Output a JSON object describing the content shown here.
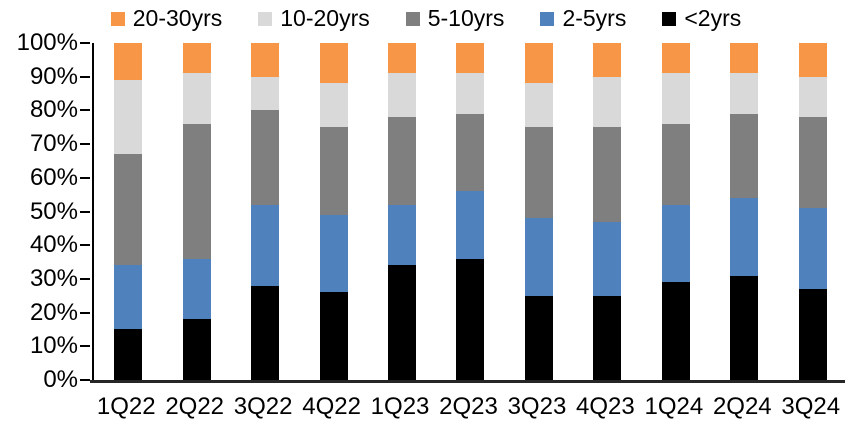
{
  "chart_data": {
    "type": "bar",
    "stacked": true,
    "normalized": "percent",
    "title": "",
    "xlabel": "",
    "ylabel": "",
    "grid": false,
    "categories": [
      "1Q22",
      "2Q22",
      "3Q22",
      "4Q22",
      "1Q23",
      "2Q23",
      "3Q23",
      "4Q23",
      "1Q24",
      "2Q24",
      "3Q24"
    ],
    "series": [
      {
        "name": "<2yrs",
        "color": "#000000",
        "values": [
          15,
          18,
          28,
          26,
          34,
          36,
          25,
          25,
          29,
          31,
          27
        ]
      },
      {
        "name": "2-5yrs",
        "color": "#4F81BD",
        "values": [
          19,
          18,
          24,
          23,
          18,
          20,
          23,
          22,
          23,
          23,
          24
        ]
      },
      {
        "name": "5-10yrs",
        "color": "#7F7F7F",
        "values": [
          33,
          40,
          28,
          26,
          26,
          23,
          27,
          28,
          24,
          25,
          27
        ]
      },
      {
        "name": "10-20yrs",
        "color": "#D9D9D9",
        "values": [
          22,
          15,
          10,
          13,
          13,
          12,
          13,
          15,
          15,
          12,
          12
        ]
      },
      {
        "name": "20-30yrs",
        "color": "#F79646",
        "values": [
          11,
          9,
          10,
          12,
          9,
          9,
          12,
          10,
          9,
          9,
          10
        ]
      }
    ],
    "legend": {
      "position": "top",
      "items": [
        {
          "label": "20-30yrs",
          "color": "#F79646"
        },
        {
          "label": "10-20yrs",
          "color": "#D9D9D9"
        },
        {
          "label": "5-10yrs",
          "color": "#7F7F7F"
        },
        {
          "label": "2-5yrs",
          "color": "#4F81BD"
        },
        {
          "label": "<2yrs",
          "color": "#000000"
        }
      ]
    },
    "y_axis": {
      "min": 0,
      "max": 100,
      "step": 10,
      "tick_labels": [
        "0%",
        "10%",
        "20%",
        "30%",
        "40%",
        "50%",
        "60%",
        "70%",
        "80%",
        "90%",
        "100%"
      ]
    },
    "colors": {
      "axis_line": "#000000",
      "baseline": "#262626",
      "text": "#000000",
      "background": "#ffffff"
    }
  }
}
